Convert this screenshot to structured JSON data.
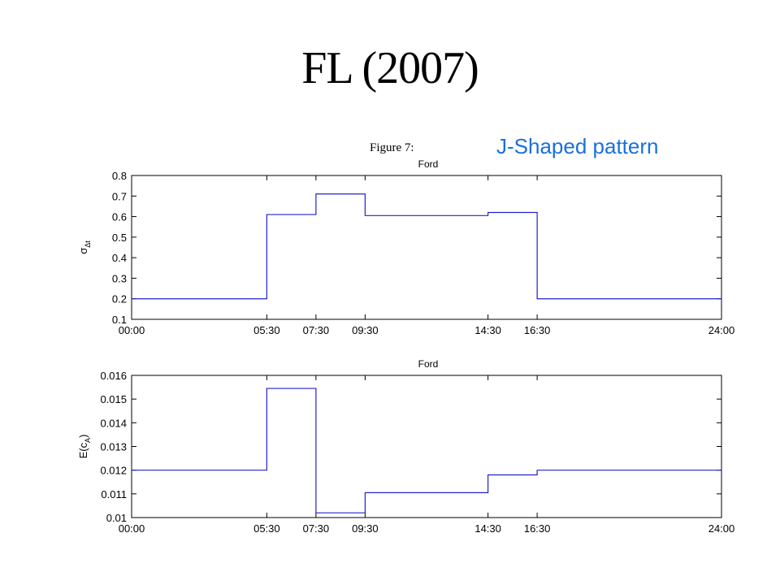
{
  "slide": {
    "title": "FL (2007)",
    "figure_label": "Figure 7:",
    "annotation": "J-Shaped pattern"
  },
  "colors": {
    "annotation": "#1a6fe0",
    "series": "#2222cc"
  },
  "chart_data": [
    {
      "type": "line",
      "style": "step",
      "title": "Ford",
      "ylabel": "σ_Δt",
      "ylabel_main": "σ",
      "ylabel_sub": "Δt",
      "ylim": [
        0.1,
        0.8
      ],
      "yticks": [
        "0.1",
        "0.2",
        "0.3",
        "0.4",
        "0.5",
        "0.6",
        "0.7",
        "0.8"
      ],
      "xlim": [
        "00:00",
        "24:00"
      ],
      "xticks": [
        "00:00",
        "05:30",
        "07:30",
        "09:30",
        "14:30",
        "16:30",
        "24:00"
      ],
      "grid": false,
      "series": [
        {
          "x": [
            "00:00",
            "05:30",
            "07:30",
            "09:30",
            "14:30",
            "16:30",
            "24:00"
          ],
          "values": [
            0.2,
            0.61,
            0.71,
            0.605,
            0.62,
            0.2,
            0.2
          ]
        }
      ]
    },
    {
      "type": "line",
      "style": "step",
      "title": "Ford",
      "ylabel": "E(c_A)",
      "ylabel_main": "E(c",
      "ylabel_sub": "A",
      "ylabel_end": ")",
      "ylim": [
        0.01,
        0.016
      ],
      "yticks": [
        "0.01",
        "0.011",
        "0.012",
        "0.013",
        "0.014",
        "0.015",
        "0.016"
      ],
      "xlim": [
        "00:00",
        "24:00"
      ],
      "xticks": [
        "00:00",
        "05:30",
        "07:30",
        "09:30",
        "14:30",
        "16:30",
        "24:00"
      ],
      "grid": false,
      "series": [
        {
          "x": [
            "00:00",
            "05:30",
            "07:30",
            "09:30",
            "14:30",
            "16:30",
            "24:00"
          ],
          "values": [
            0.012,
            0.01545,
            0.0102,
            0.01105,
            0.0118,
            0.012,
            0.012
          ]
        }
      ]
    }
  ]
}
